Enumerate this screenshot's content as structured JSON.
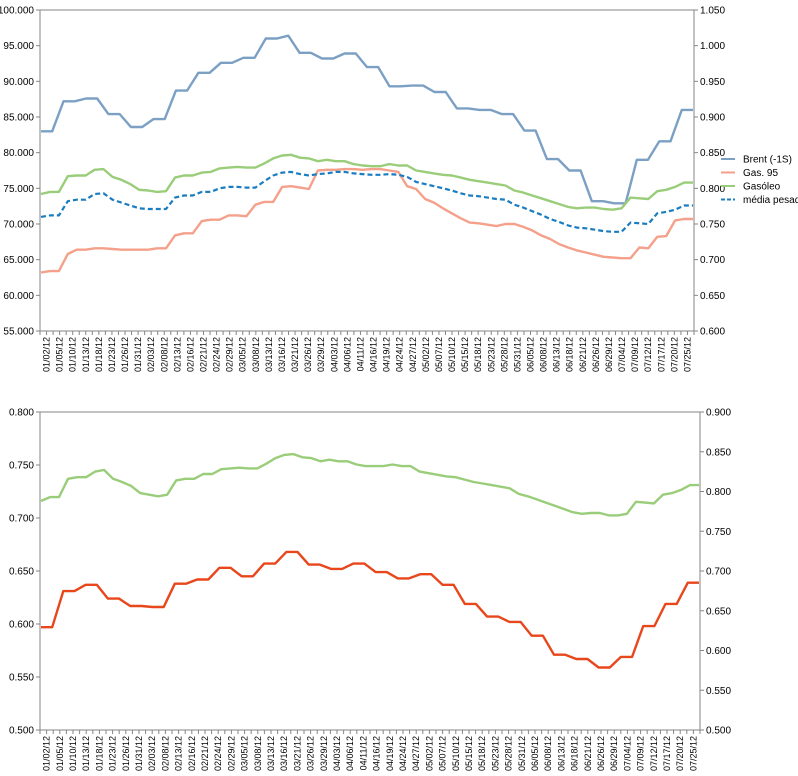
{
  "chart_data": [
    {
      "type": "line",
      "title": "",
      "xlabel": "",
      "ylabel": "",
      "ylim": [
        55.0,
        100.0
      ],
      "y2lim": [
        0.6,
        1.05
      ],
      "grid": false,
      "legend_position": "right",
      "yticks": [
        "55.000",
        "60.000",
        "65.000",
        "70.000",
        "75.000",
        "80.000",
        "85.000",
        "90.000",
        "95.000",
        "100.000"
      ],
      "y2ticks": [
        "0.600",
        "0.650",
        "0.700",
        "0.750",
        "0.800",
        "0.850",
        "0.900",
        "0.950",
        "1.000",
        "1.050"
      ],
      "xticks": [
        "01/02/12",
        "01/05/12",
        "01/10/12",
        "01/13/12",
        "01/18/12",
        "01/23/12",
        "01/26/12",
        "01/31/12",
        "02/03/12",
        "02/08/12",
        "02/13/12",
        "02/16/12",
        "02/21/12",
        "02/24/12",
        "02/29/12",
        "03/05/12",
        "03/08/12",
        "03/13/12",
        "03/16/12",
        "03/21/12",
        "03/26/12",
        "03/29/12",
        "04/03/12",
        "04/06/12",
        "04/11/12",
        "04/16/12",
        "04/19/12",
        "04/24/12",
        "04/27/12",
        "05/02/12",
        "05/07/12",
        "05/10/12",
        "05/15/12",
        "05/18/12",
        "05/23/12",
        "05/28/12",
        "05/31/12",
        "06/05/12",
        "06/08/12",
        "06/13/12",
        "06/18/12",
        "06/21/12",
        "06/26/12",
        "06/29/12",
        "07/04/12",
        "07/09/12",
        "07/12/12",
        "07/17/12",
        "07/20/12",
        "07/25/12"
      ],
      "series": [
        {
          "name": "Brent (-1S)",
          "axis": "left",
          "color": "#7ba0c4",
          "dash": false,
          "values": [
            83.0,
            83.0,
            87.2,
            87.2,
            87.6,
            87.6,
            85.4,
            85.4,
            83.6,
            83.6,
            84.7,
            84.7,
            88.7,
            88.7,
            91.2,
            91.2,
            92.6,
            92.6,
            93.3,
            93.3,
            96.0,
            96.0,
            96.4,
            94.0,
            94.0,
            93.2,
            93.2,
            93.9,
            93.9,
            92.0,
            92.0,
            89.3,
            89.3,
            89.4,
            89.4,
            88.5,
            88.5,
            86.2,
            86.2,
            86.0,
            86.0,
            85.4,
            85.4,
            83.1,
            83.1,
            79.1,
            79.1,
            77.5,
            77.5,
            73.2,
            73.2,
            72.9,
            72.9,
            79.0,
            79.0,
            81.6,
            81.6,
            86.0,
            86.0
          ]
        },
        {
          "name": "Gas. 95",
          "axis": "right",
          "color": "#f4a08a",
          "dash": false,
          "values": [
            0.682,
            0.684,
            0.684,
            0.708,
            0.714,
            0.714,
            0.716,
            0.716,
            0.715,
            0.714,
            0.714,
            0.714,
            0.714,
            0.716,
            0.716,
            0.734,
            0.737,
            0.737,
            0.754,
            0.756,
            0.756,
            0.762,
            0.762,
            0.761,
            0.777,
            0.781,
            0.781,
            0.802,
            0.803,
            0.801,
            0.799,
            0.825,
            0.826,
            0.826,
            0.827,
            0.827,
            0.826,
            0.827,
            0.827,
            0.825,
            0.823,
            0.803,
            0.799,
            0.785,
            0.78,
            0.772,
            0.765,
            0.758,
            0.752,
            0.751,
            0.749,
            0.747,
            0.75,
            0.75,
            0.746,
            0.741,
            0.734,
            0.729,
            0.722,
            0.717,
            0.713,
            0.71,
            0.707,
            0.704,
            0.703,
            0.702,
            0.702,
            0.717,
            0.716,
            0.732,
            0.733,
            0.755,
            0.757,
            0.757
          ]
        },
        {
          "name": "Gasóleo",
          "axis": "right",
          "color": "#9acd7a",
          "dash": false,
          "values": [
            0.792,
            0.795,
            0.795,
            0.817,
            0.818,
            0.818,
            0.826,
            0.827,
            0.816,
            0.812,
            0.806,
            0.798,
            0.797,
            0.795,
            0.796,
            0.815,
            0.818,
            0.818,
            0.822,
            0.823,
            0.828,
            0.829,
            0.83,
            0.829,
            0.829,
            0.835,
            0.842,
            0.846,
            0.847,
            0.843,
            0.842,
            0.838,
            0.84,
            0.838,
            0.838,
            0.834,
            0.832,
            0.831,
            0.831,
            0.834,
            0.832,
            0.832,
            0.825,
            0.823,
            0.821,
            0.819,
            0.818,
            0.815,
            0.812,
            0.81,
            0.808,
            0.806,
            0.804,
            0.797,
            0.794,
            0.79,
            0.786,
            0.782,
            0.778,
            0.774,
            0.772,
            0.773,
            0.773,
            0.771,
            0.77,
            0.772,
            0.787,
            0.786,
            0.785,
            0.796,
            0.798,
            0.802,
            0.808,
            0.808
          ]
        },
        {
          "name": "média pesada",
          "axis": "right",
          "color": "#1a7cc1",
          "dash": true,
          "values": [
            0.76,
            0.762,
            0.762,
            0.782,
            0.784,
            0.784,
            0.792,
            0.793,
            0.784,
            0.78,
            0.776,
            0.772,
            0.771,
            0.771,
            0.771,
            0.787,
            0.79,
            0.79,
            0.795,
            0.795,
            0.8,
            0.802,
            0.802,
            0.801,
            0.801,
            0.81,
            0.818,
            0.822,
            0.823,
            0.82,
            0.818,
            0.82,
            0.821,
            0.823,
            0.823,
            0.821,
            0.82,
            0.819,
            0.819,
            0.82,
            0.819,
            0.816,
            0.809,
            0.806,
            0.803,
            0.8,
            0.797,
            0.793,
            0.79,
            0.789,
            0.787,
            0.785,
            0.784,
            0.777,
            0.773,
            0.768,
            0.763,
            0.757,
            0.753,
            0.748,
            0.745,
            0.744,
            0.742,
            0.74,
            0.739,
            0.739,
            0.752,
            0.751,
            0.75,
            0.765,
            0.767,
            0.77,
            0.776,
            0.776
          ]
        }
      ]
    },
    {
      "type": "line",
      "title": "",
      "xlabel": "",
      "ylabel": "",
      "ylim": [
        0.5,
        0.8
      ],
      "y2lim": [
        0.5,
        0.9
      ],
      "grid": false,
      "yticks": [
        "0.500",
        "0.550",
        "0.600",
        "0.650",
        "0.700",
        "0.750",
        "0.800"
      ],
      "y2ticks": [
        "0.500",
        "0.550",
        "0.600",
        "0.650",
        "0.700",
        "0.750",
        "0.800",
        "0.850",
        "0.900"
      ],
      "xticks": [
        "01/02/12",
        "01/05/12",
        "01/10/12",
        "01/13/12",
        "01/18/12",
        "01/23/12",
        "01/26/12",
        "01/31/12",
        "02/03/12",
        "02/08/12",
        "02/13/12",
        "02/16/12",
        "02/21/12",
        "02/24/12",
        "02/29/12",
        "03/05/12",
        "03/08/12",
        "03/13/12",
        "03/16/12",
        "03/21/12",
        "03/26/12",
        "03/29/12",
        "04/03/12",
        "04/06/12",
        "04/11/12",
        "04/16/12",
        "04/19/12",
        "04/24/12",
        "04/27/12",
        "05/02/12",
        "05/07/12",
        "05/10/12",
        "05/15/12",
        "05/18/12",
        "05/23/12",
        "05/28/12",
        "05/31/12",
        "06/05/12",
        "06/08/12",
        "06/13/12",
        "06/18/12",
        "06/21/12",
        "06/26/12",
        "06/29/12",
        "07/04/12",
        "07/09/12",
        "07/12/12",
        "07/17/12",
        "07/20/12",
        "07/25/12"
      ],
      "series": [
        {
          "axis": "right",
          "color": "#9acd7a",
          "dash": false,
          "values": [
            0.788,
            0.793,
            0.793,
            0.816,
            0.818,
            0.818,
            0.825,
            0.827,
            0.816,
            0.812,
            0.807,
            0.798,
            0.796,
            0.794,
            0.796,
            0.814,
            0.816,
            0.816,
            0.822,
            0.822,
            0.828,
            0.829,
            0.83,
            0.829,
            0.829,
            0.835,
            0.842,
            0.846,
            0.847,
            0.843,
            0.842,
            0.838,
            0.84,
            0.838,
            0.838,
            0.834,
            0.832,
            0.832,
            0.832,
            0.834,
            0.832,
            0.832,
            0.825,
            0.823,
            0.821,
            0.819,
            0.818,
            0.815,
            0.812,
            0.81,
            0.808,
            0.806,
            0.804,
            0.797,
            0.794,
            0.79,
            0.786,
            0.782,
            0.778,
            0.774,
            0.772,
            0.773,
            0.773,
            0.77,
            0.77,
            0.772,
            0.787,
            0.786,
            0.785,
            0.796,
            0.798,
            0.802,
            0.808,
            0.808
          ]
        },
        {
          "axis": "left",
          "color": "#e8461b",
          "dash": false,
          "values": [
            0.597,
            0.597,
            0.631,
            0.631,
            0.637,
            0.637,
            0.624,
            0.624,
            0.617,
            0.617,
            0.616,
            0.616,
            0.638,
            0.638,
            0.642,
            0.642,
            0.653,
            0.653,
            0.645,
            0.645,
            0.657,
            0.657,
            0.668,
            0.668,
            0.656,
            0.656,
            0.652,
            0.652,
            0.657,
            0.657,
            0.649,
            0.649,
            0.643,
            0.643,
            0.647,
            0.647,
            0.637,
            0.637,
            0.619,
            0.619,
            0.607,
            0.607,
            0.602,
            0.602,
            0.589,
            0.589,
            0.571,
            0.571,
            0.567,
            0.567,
            0.559,
            0.559,
            0.569,
            0.569,
            0.598,
            0.598,
            0.619,
            0.619,
            0.639,
            0.639
          ]
        }
      ]
    }
  ]
}
